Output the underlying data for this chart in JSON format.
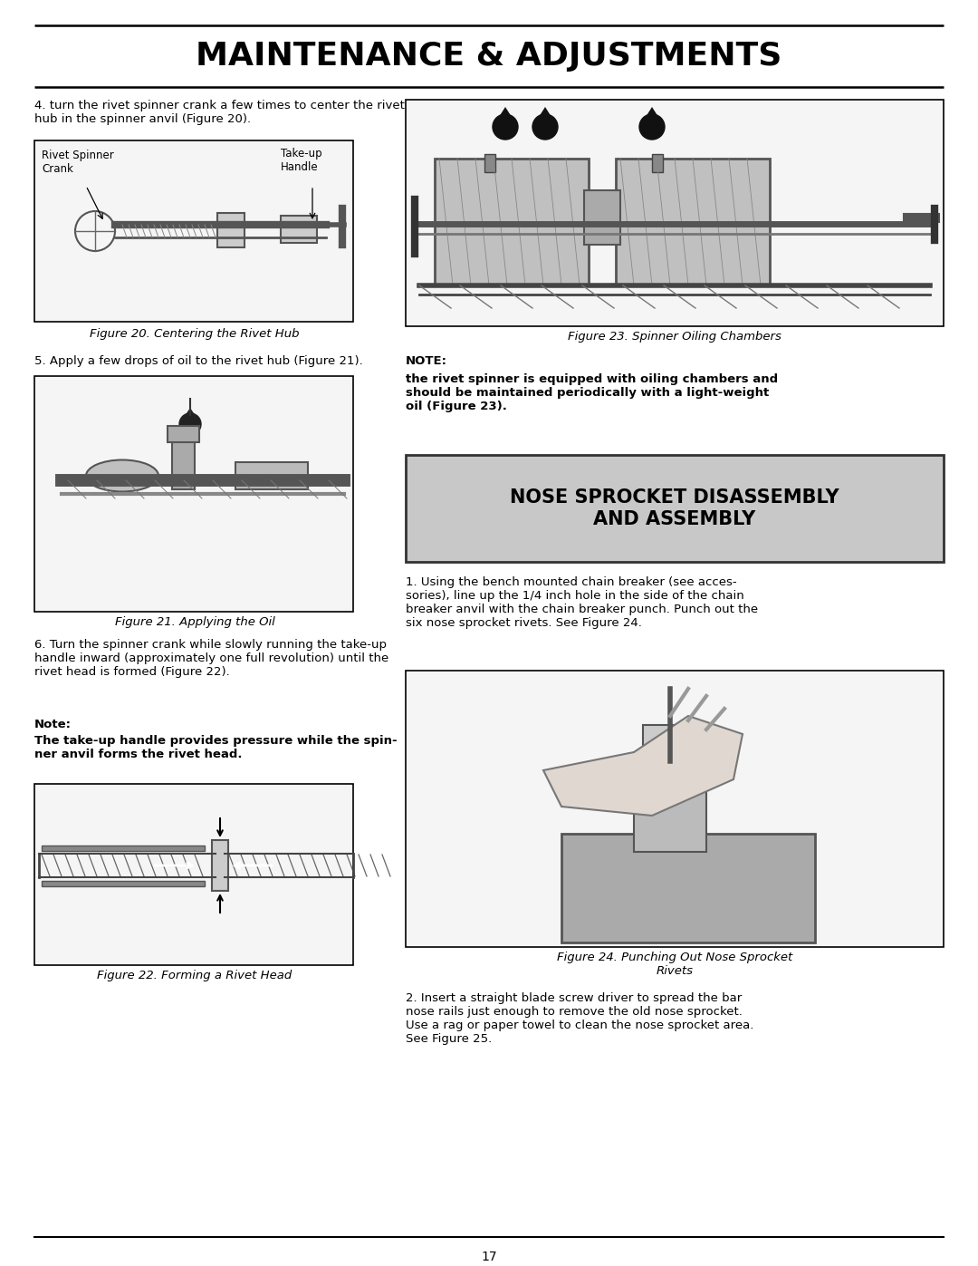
{
  "page_bg": "#ffffff",
  "header_title": "MAINTENANCE & ADJUSTMENTS",
  "header_title_fontsize": 26,
  "text_color": "#000000",
  "footer_page_number": "17",
  "body_fontsize": 9.5,
  "caption_fontsize": 9.5,
  "note_fontsize": 9.5,
  "section_header_fontsize": 15,
  "section_header_bg": "#c8c8c8",
  "fig_box_bg": "#ffffff",
  "fig_box_edge": "#000000",
  "para4": "4. turn the rivet spinner crank a few times to center the rivet\nhub in the spinner anvil (Figure 20).",
  "fig20_label_crank": "Rivet Spinner\nCrank",
  "fig20_label_handle": "Take-up\nHandle",
  "fig20_caption": "Figure 20. Centering the Rivet Hub",
  "para5": "5. Apply a few drops of oil to the rivet hub (Figure 21).",
  "fig21_caption": "Figure 21. Applying the Oil",
  "para6": "6. Turn the spinner crank while slowly running the take-up\nhandle inward (approximately one full revolution) until the\nrivet head is formed (Figure 22).",
  "note_label": "Note:",
  "note_text": "The take-up handle provides pressure while the spin-\nner anvil forms the rivet head.",
  "fig22_caption": "Figure 22. Forming a Rivet Head",
  "fig23_caption": "Figure 23. Spinner Oiling Chambers",
  "note_right_label": "NOTE:",
  "note_right_bold": "the rivet spinner is equipped with oiling chambers and\nshould be maintained periodically with a light-weight\noil (Figure 23).",
  "section_title": "NOSE SPROCKET DISASSEMBLY\nAND ASSEMBLY",
  "para1_right": "1. Using the bench mounted chain breaker (see acces-\nsories), line up the 1/4 inch hole in the side of the chain\nbreaker anvil with the chain breaker punch. Punch out the\nsix nose sprocket rivets. See Figure 24.",
  "fig24_caption": "Figure 24. Punching Out Nose Sprocket\nRivets",
  "para2_right": "2. Insert a straight blade screw driver to spread the bar\nnose rails just enough to remove the old nose sprocket.\nUse a rag or paper towel to clean the nose sprocket area.\nSee Figure 25."
}
